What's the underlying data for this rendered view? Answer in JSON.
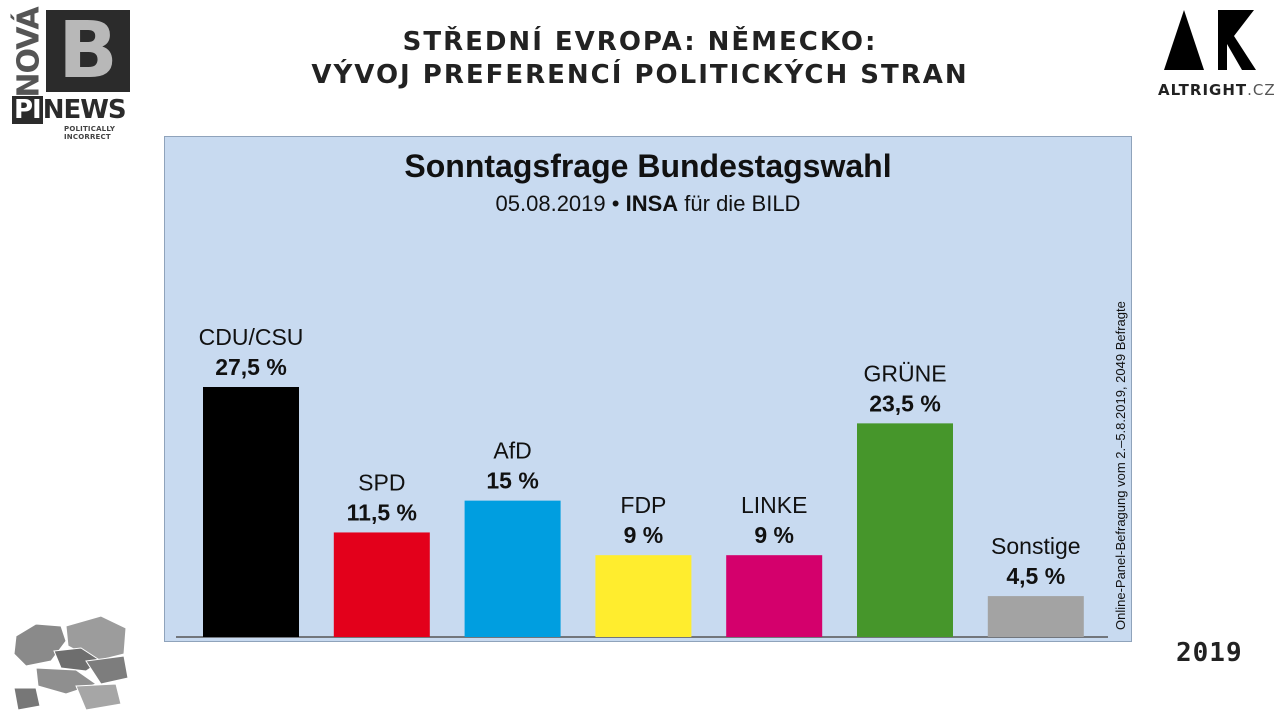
{
  "header": {
    "title_line1": "STŘEDNÍ EVROPA: NĚMECKO:",
    "title_line2": "VÝVOJ PREFERENCÍ POLITICKÝCH STRAN",
    "year": "2019"
  },
  "logo_left": {
    "nova": "NOVÁ",
    "b": "B",
    "pi": "PI",
    "news": "NEWS",
    "tagline": "POLITICALLY INCORRECT"
  },
  "logo_right": {
    "brand": "ALTRIGHT",
    "tld": ".CZ"
  },
  "chart_data": {
    "type": "bar",
    "title": "Sonntagsfrage Bundestagswahl",
    "subtitle": {
      "date": "05.08.2019",
      "separator": "•",
      "institute": "INSA",
      "client": "für die BILD"
    },
    "note": "Online-Panel-Befragung vom 2.–5.8.2019, 2049 Befragte",
    "categories": [
      "CDU/CSU",
      "SPD",
      "AfD",
      "FDP",
      "LINKE",
      "GRÜNE",
      "Sonstige"
    ],
    "values": [
      27.5,
      11.5,
      15,
      9,
      9,
      23.5,
      4.5
    ],
    "value_labels": [
      "27,5 %",
      "11,5 %",
      "15 %",
      "9 %",
      "9 %",
      "23,5 %",
      "4,5 %"
    ],
    "colors": [
      "#000000",
      "#e3001b",
      "#009ee0",
      "#ffed2e",
      "#d4006c",
      "#46962b",
      "#a3a3a3"
    ],
    "ylim": [
      0,
      27.5
    ],
    "xlabel": "",
    "ylabel": "",
    "grid": false,
    "legend": "none"
  }
}
